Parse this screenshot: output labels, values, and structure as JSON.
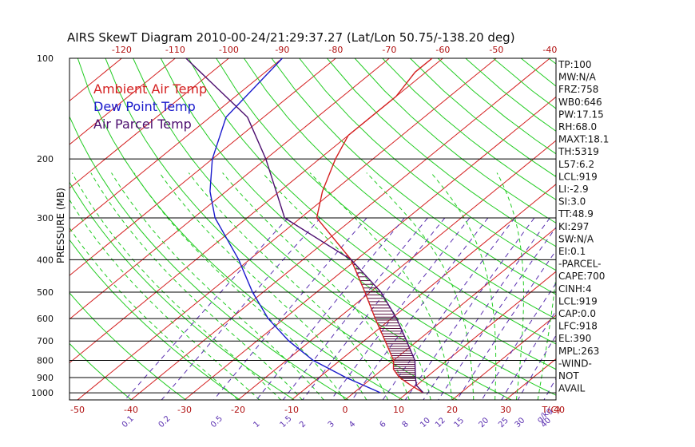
{
  "chart_data": {
    "type": "line",
    "title": "AIRS SkewT Diagram 2010-00-24/21:29:37.27 (Lat/Lon 50.75/-138.20 deg)",
    "ylabel": "PRESSURE (MB)",
    "xlabel_bottom_unit": "T(C)",
    "mixing_unit": "g/kg",
    "ylim": [
      100,
      1050
    ],
    "y_scale": "log",
    "xlim_at_1050mb": [
      -55,
      40
    ],
    "y_ticks": [
      100,
      200,
      300,
      400,
      500,
      600,
      700,
      800,
      900,
      1000
    ],
    "x_ticks_bottom": [
      -50,
      -40,
      -30,
      -20,
      -10,
      0,
      10,
      20,
      30,
      40
    ],
    "x_ticks_top": [
      -120,
      -110,
      -100,
      -90,
      -80,
      -70,
      -60,
      -50,
      -40
    ],
    "mixing_ratio_labels": [
      "0.1",
      "0.2",
      "0.5",
      "1",
      "1.5",
      "2",
      "3",
      "4",
      "6",
      "8",
      "10",
      "12",
      "15",
      "20",
      "25",
      "30",
      "40"
    ],
    "legend": [
      {
        "label": "Ambient Air Temp",
        "color": "#d42020"
      },
      {
        "label": "Dew Point Temp",
        "color": "#1a1acc"
      },
      {
        "label": "Air Parcel Temp",
        "color": "#4b0d6e"
      }
    ],
    "colors": {
      "isotherm": "#d42020",
      "dry_adiabat": "#22cc22",
      "moist_adiabat": "#22cc22",
      "mixing_ratio": "#5a2fb0",
      "cape_hatch": "#5a1040"
    },
    "series": [
      {
        "name": "Ambient Air Temp",
        "points": [
          [
            100,
            -62
          ],
          [
            110,
            -62
          ],
          [
            130,
            -60
          ],
          [
            150,
            -60
          ],
          [
            170,
            -60
          ],
          [
            200,
            -57
          ],
          [
            250,
            -52
          ],
          [
            300,
            -47
          ],
          [
            400,
            -31
          ],
          [
            500,
            -21
          ],
          [
            600,
            -13
          ],
          [
            700,
            -6
          ],
          [
            800,
            0
          ],
          [
            850,
            2
          ],
          [
            900,
            5
          ],
          [
            950,
            9
          ],
          [
            1000,
            13
          ]
        ]
      },
      {
        "name": "Dew Point Temp",
        "points": [
          [
            100,
            -90
          ],
          [
            150,
            -87
          ],
          [
            200,
            -80
          ],
          [
            250,
            -73
          ],
          [
            300,
            -66
          ],
          [
            400,
            -52
          ],
          [
            500,
            -42
          ],
          [
            600,
            -33
          ],
          [
            700,
            -24
          ],
          [
            800,
            -15
          ],
          [
            900,
            -5
          ],
          [
            1000,
            5
          ]
        ]
      },
      {
        "name": "Air Parcel Temp",
        "points": [
          [
            100,
            -108
          ],
          [
            150,
            -83
          ],
          [
            200,
            -70
          ],
          [
            300,
            -53
          ],
          [
            400,
            -31
          ],
          [
            500,
            -18
          ],
          [
            600,
            -9
          ],
          [
            700,
            -2
          ],
          [
            800,
            4
          ],
          [
            900,
            8
          ],
          [
            950,
            10
          ],
          [
            1000,
            13
          ]
        ]
      }
    ],
    "cape_region": {
      "from": 390,
      "to": 918
    },
    "indices": [
      "TP:100",
      "MW:N/A",
      "FRZ:758",
      "WB0:646",
      "PW:17.15",
      "RH:68.0",
      "MAXT:18.1",
      "TH:5319",
      "L57:6.2",
      "LCL:919",
      "LI:-2.9",
      "SI:3.0",
      "TT:48.9",
      "KI:297",
      "SW:N/A",
      "EI:0.1",
      "-PARCEL-",
      "CAPE:700",
      "CINH:4",
      "LCL:919",
      "CAP:0.0",
      "LFC:918",
      "EL:390",
      "MPL:263",
      "-WIND-",
      "NOT",
      "AVAIL"
    ]
  }
}
